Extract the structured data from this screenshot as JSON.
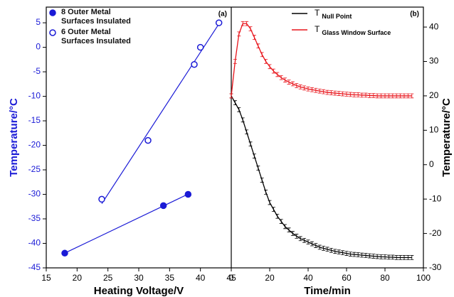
{
  "chart_data": [
    {
      "type": "scatter",
      "panel_label": "(a)",
      "x_label": "Heating Voltage/V",
      "y_label": "Temperature/°C",
      "axis_color": "#1a1ad6",
      "fit_line": true,
      "xlim": [
        15,
        45
      ],
      "xticks": [
        15,
        20,
        25,
        30,
        35,
        40,
        45
      ],
      "ylim": [
        -45,
        8.2
      ],
      "yticks": [
        -45,
        -40,
        -35,
        -30,
        -25,
        -20,
        -15,
        -10,
        -5,
        0,
        5
      ],
      "series": [
        {
          "name": "8 Outer Metal Surfaces Insulated",
          "color": "#1a1ad6",
          "marker": "filled",
          "x": [
            18,
            34,
            38
          ],
          "values": [
            -42,
            -32.3,
            -30
          ]
        },
        {
          "name": "6 Outer Metal Surfaces Insulated",
          "color": "#1a1ad6",
          "marker": "open",
          "x": [
            24,
            31.5,
            39,
            40,
            43
          ],
          "values": [
            -31,
            -19,
            -3.5,
            0,
            5
          ]
        }
      ]
    },
    {
      "type": "line",
      "panel_label": "(b)",
      "x_label": "Time/min",
      "y_label": "Temperature/°C",
      "y_axis_side": "right",
      "xlim": [
        0,
        100
      ],
      "xticks": [
        0,
        20,
        40,
        60,
        80,
        100
      ],
      "ylim": [
        -30,
        45.8
      ],
      "yticks": [
        -30,
        -20,
        -10,
        0,
        10,
        20,
        30,
        40
      ],
      "x": [
        0,
        2,
        4,
        6,
        8,
        10,
        12,
        14,
        16,
        18,
        20,
        22,
        24,
        26,
        28,
        30,
        32,
        34,
        36,
        38,
        40,
        42,
        44,
        46,
        48,
        50,
        52,
        54,
        56,
        58,
        60,
        62,
        64,
        66,
        68,
        70,
        72,
        74,
        76,
        78,
        80,
        82,
        84,
        86,
        88,
        90,
        92,
        94
      ],
      "series": [
        {
          "name": "T",
          "subscript": "Null Point",
          "color": "#000000",
          "error": 0.6,
          "values": [
            20,
            18,
            16,
            13,
            9.5,
            6,
            2.5,
            -1,
            -4.5,
            -8,
            -11,
            -13,
            -15,
            -16.5,
            -18,
            -19,
            -20,
            -20.8,
            -21.5,
            -22,
            -22.5,
            -23,
            -23.5,
            -24,
            -24.3,
            -24.6,
            -24.9,
            -25.2,
            -25.4,
            -25.6,
            -25.8,
            -26,
            -26.1,
            -26.2,
            -26.3,
            -26.4,
            -26.5,
            -26.6,
            -26.7,
            -26.8,
            -26.8,
            -26.9,
            -26.9,
            -27,
            -27,
            -27,
            -27,
            -27
          ]
        },
        {
          "name": "T",
          "subscript": "Glass Window Surface",
          "color": "#e8141b",
          "error": 0.6,
          "values": [
            20,
            30,
            38,
            41,
            41,
            39.5,
            37,
            34.5,
            32,
            30,
            28.5,
            27.2,
            26.2,
            25.3,
            24.6,
            24,
            23.5,
            23,
            22.6,
            22.3,
            22,
            21.8,
            21.6,
            21.4,
            21.2,
            21,
            20.9,
            20.8,
            20.7,
            20.6,
            20.5,
            20.4,
            20.3,
            20.3,
            20.2,
            20.2,
            20.1,
            20.1,
            20,
            20,
            20,
            20,
            20,
            20,
            20,
            20,
            20,
            20
          ]
        }
      ]
    }
  ]
}
